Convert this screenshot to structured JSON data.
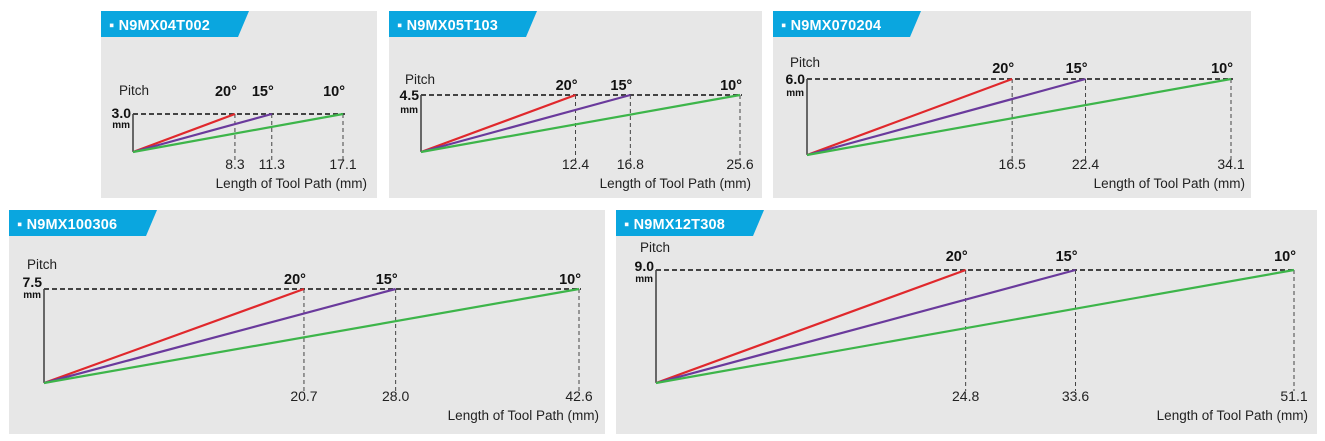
{
  "colors": {
    "panel_bg": "#e7e7e7",
    "tab_bg": "#0aa6df",
    "line_20": "#e0282c",
    "line_15": "#6a3a9c",
    "line_10": "#3db54a",
    "axis": "#222222",
    "dash": "#444444"
  },
  "chart_data": [
    {
      "type": "line",
      "title": "N9MX04T002",
      "tab_label": "▪ N9MX04T002",
      "ylabel": "Pitch",
      "pitch_value": "3.0",
      "pitch_unit": "mm",
      "xlabel": "Length of Tool Path (mm)",
      "pitch": 3.0,
      "series": [
        {
          "name": "20°",
          "angle_label": "20°",
          "x_end": 8.3,
          "x_label": "8.3"
        },
        {
          "name": "15°",
          "angle_label": "15°",
          "x_end": 11.3,
          "x_label": "11.3"
        },
        {
          "name": "10°",
          "angle_label": "10°",
          "x_end": 17.1,
          "x_label": "17.1"
        }
      ]
    },
    {
      "type": "line",
      "title": "N9MX05T103",
      "tab_label": "▪ N9MX05T103",
      "ylabel": "Pitch",
      "pitch_value": "4.5",
      "pitch_unit": "mm",
      "xlabel": "Length of Tool Path (mm)",
      "pitch": 4.5,
      "series": [
        {
          "name": "20°",
          "angle_label": "20°",
          "x_end": 12.4,
          "x_label": "12.4"
        },
        {
          "name": "15°",
          "angle_label": "15°",
          "x_end": 16.8,
          "x_label": "16.8"
        },
        {
          "name": "10°",
          "angle_label": "10°",
          "x_end": 25.6,
          "x_label": "25.6"
        }
      ]
    },
    {
      "type": "line",
      "title": "N9MX070204",
      "tab_label": "▪ N9MX070204",
      "ylabel": "Pitch",
      "pitch_value": "6.0",
      "pitch_unit": "mm",
      "xlabel": "Length of Tool Path (mm)",
      "pitch": 6.0,
      "series": [
        {
          "name": "20°",
          "angle_label": "20°",
          "x_end": 16.5,
          "x_label": "16.5"
        },
        {
          "name": "15°",
          "angle_label": "15°",
          "x_end": 22.4,
          "x_label": "22.4"
        },
        {
          "name": "10°",
          "angle_label": "10°",
          "x_end": 34.1,
          "x_label": "34.1"
        }
      ]
    },
    {
      "type": "line",
      "title": "N9MX100306",
      "tab_label": "▪ N9MX100306",
      "ylabel": "Pitch",
      "pitch_value": "7.5",
      "pitch_unit": "mm",
      "xlabel": "Length of Tool Path (mm)",
      "pitch": 7.5,
      "series": [
        {
          "name": "20°",
          "angle_label": "20°",
          "x_end": 20.7,
          "x_label": "20.7"
        },
        {
          "name": "15°",
          "angle_label": "15°",
          "x_end": 28.0,
          "x_label": "28.0"
        },
        {
          "name": "10°",
          "angle_label": "10°",
          "x_end": 42.6,
          "x_label": "42.6"
        }
      ]
    },
    {
      "type": "line",
      "title": "N9MX12T308",
      "tab_label": "▪ N9MX12T308",
      "ylabel": "Pitch",
      "pitch_value": "9.0",
      "pitch_unit": "mm",
      "xlabel": "Length of Tool Path (mm)",
      "pitch": 9.0,
      "series": [
        {
          "name": "20°",
          "angle_label": "20°",
          "x_end": 24.8,
          "x_label": "24.8"
        },
        {
          "name": "15°",
          "angle_label": "15°",
          "x_end": 33.6,
          "x_label": "33.6"
        },
        {
          "name": "10°",
          "angle_label": "10°",
          "x_end": 51.1,
          "x_label": "51.1"
        }
      ]
    }
  ]
}
